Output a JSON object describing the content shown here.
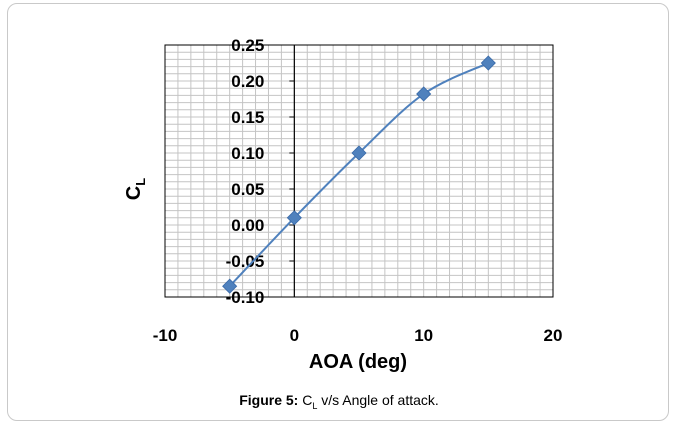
{
  "chart_data": {
    "type": "scatter",
    "x": [
      -5,
      0,
      5,
      10,
      15
    ],
    "y": [
      -0.085,
      0.01,
      0.1,
      0.182,
      0.225
    ],
    "xlabel": "AOA (deg)",
    "ylabel": {
      "main": "C",
      "sub": "L"
    },
    "xlim": [
      -10,
      20
    ],
    "ylim": [
      -0.1,
      0.25
    ],
    "xticks": [
      -10,
      0,
      10,
      20
    ],
    "yticks": [
      -0.1,
      -0.05,
      0.0,
      0.05,
      0.1,
      0.15,
      0.2,
      0.25
    ],
    "xtick_labels": [
      "-10",
      "0",
      "10",
      "20"
    ],
    "ytick_labels": [
      "-0.10",
      "-0.05",
      "0.00",
      "0.05",
      "0.10",
      "0.15",
      "0.20",
      "0.25"
    ],
    "line_color": "#4f81bd",
    "marker_color": "#4f81bd",
    "marker": "diamond",
    "smooth_line": true,
    "grid": true
  },
  "caption": {
    "label": "Figure 5:",
    "text_main": "C",
    "text_sub": "L",
    "text_rest": " v/s Angle of attack."
  }
}
